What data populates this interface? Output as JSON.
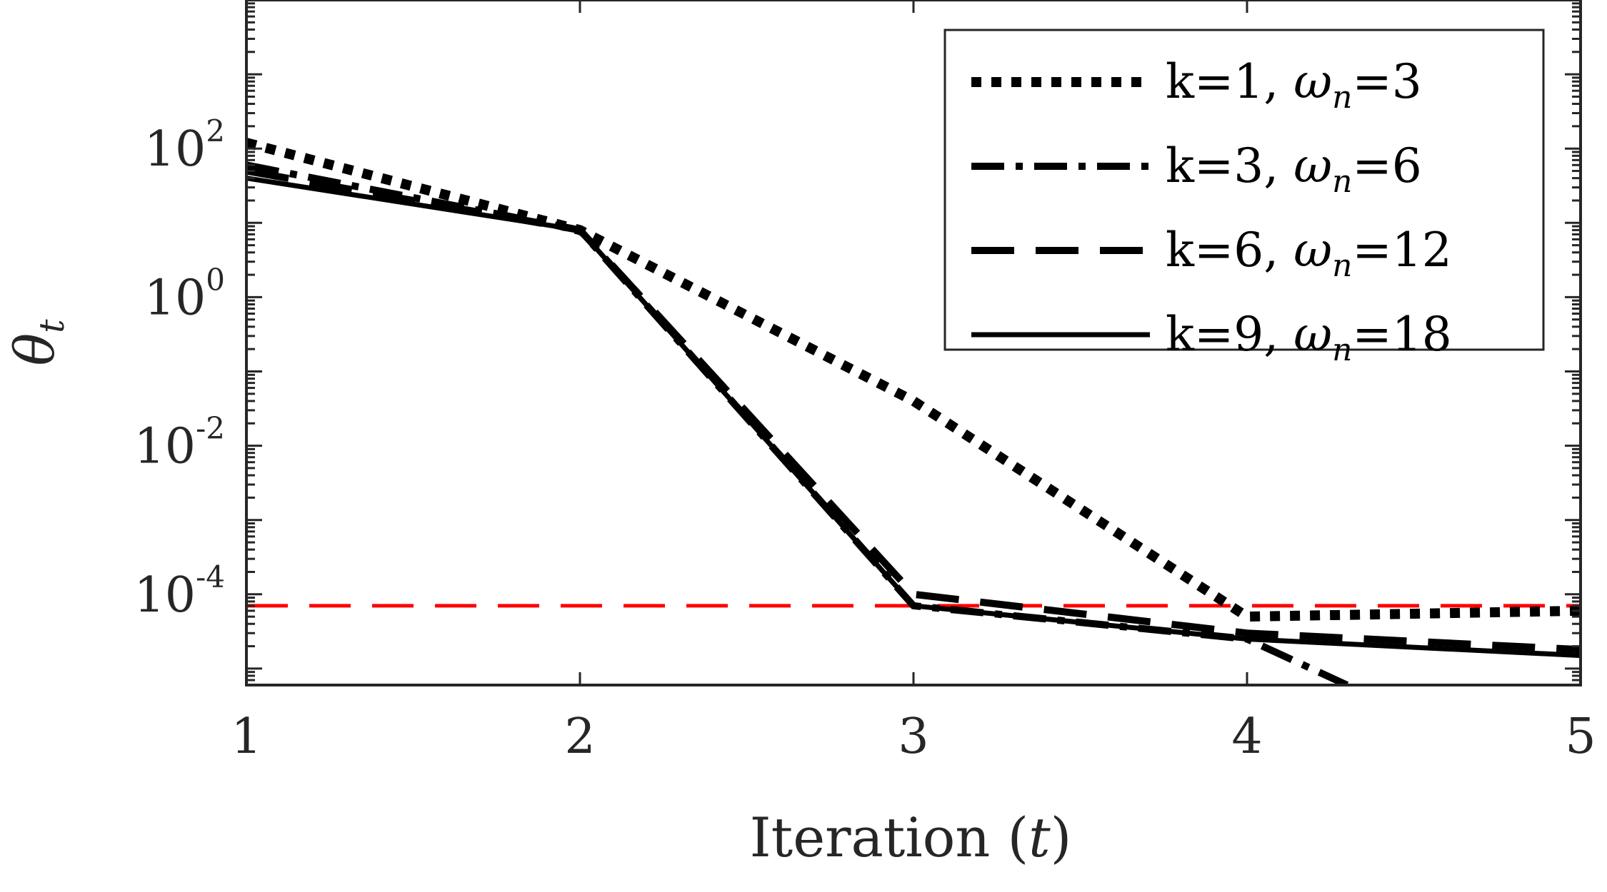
{
  "chart_data": {
    "type": "line",
    "xlabel": "Iteration",
    "xlabel_var": "t",
    "ylabel": "θ",
    "ylabel_sub": "t",
    "x_ticks": [
      "1",
      "2",
      "3",
      "4",
      "5"
    ],
    "y_ticks": [
      {
        "base": "10",
        "exp": "2",
        "value": 100
      },
      {
        "base": "10",
        "exp": "0",
        "value": 1
      },
      {
        "base": "10",
        "exp": "-2",
        "value": 0.01
      },
      {
        "base": "10",
        "exp": "-4",
        "value": 0.0001
      }
    ],
    "xlim": [
      1,
      5
    ],
    "ylim": [
      6e-06,
      10000
    ],
    "y_scale": "log",
    "grid": false,
    "legend_placement": "top-right",
    "series": [
      {
        "name": "k=1, ω_n=3",
        "label_main": "k=1, ",
        "label_omega": "ω",
        "label_sub": "n",
        "label_tail": "=3",
        "style": "dotted",
        "color": "#000000",
        "x": [
          1,
          2,
          3,
          4,
          5
        ],
        "y": [
          120,
          8,
          0.04,
          5e-05,
          6e-05
        ]
      },
      {
        "name": "k=3, ω_n=6",
        "label_main": "k=3, ",
        "label_omega": "ω",
        "label_sub": "n",
        "label_tail": "=6",
        "style": "dashdot",
        "color": "#000000",
        "x": [
          1,
          2,
          3,
          4,
          4.3
        ],
        "y": [
          60,
          8,
          7e-05,
          2.5e-05,
          6e-06
        ]
      },
      {
        "name": "k=6, ω_n=12",
        "label_main": "k=6, ",
        "label_omega": "ω",
        "label_sub": "n",
        "label_tail": "=12",
        "style": "dashed",
        "color": "#000000",
        "x": [
          1,
          2,
          3,
          4,
          5
        ],
        "y": [
          50,
          8,
          0.0001,
          3e-05,
          1.8e-05
        ]
      },
      {
        "name": "k=9, ω_n=18",
        "label_main": "k=9, ",
        "label_omega": "ω",
        "label_sub": "n",
        "label_tail": "=18",
        "style": "solid",
        "color": "#000000",
        "x": [
          1,
          2,
          3,
          4,
          5
        ],
        "y": [
          40,
          8,
          7e-05,
          2.5e-05,
          1.5e-05
        ]
      }
    ],
    "reference_line": {
      "y": 7e-05,
      "color": "#ff0000",
      "style": "dashed"
    }
  }
}
